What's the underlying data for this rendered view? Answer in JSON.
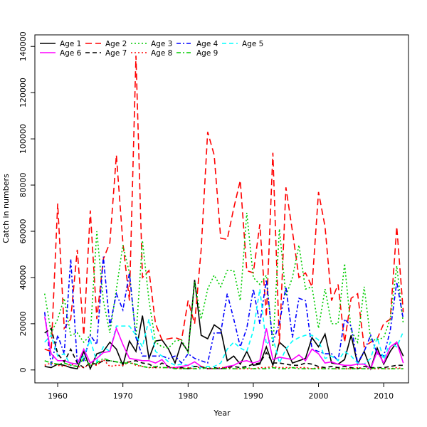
{
  "chart_data": {
    "type": "line",
    "title": "",
    "xlabel": "Year",
    "ylabel": "Catch in numbers",
    "xlim": [
      1956.5,
      2013.8
    ],
    "ylim": [
      -5600,
      145000
    ],
    "x_ticks": [
      1960,
      1970,
      1980,
      1990,
      2000,
      2010
    ],
    "y_ticks": [
      0,
      20000,
      40000,
      60000,
      80000,
      100000,
      120000,
      140000
    ],
    "grid": false,
    "legend_position": "top-left inside, 4 columns",
    "x": [
      1958,
      1959,
      1960,
      1961,
      1962,
      1963,
      1964,
      1965,
      1966,
      1967,
      1968,
      1969,
      1970,
      1971,
      1972,
      1973,
      1974,
      1975,
      1976,
      1977,
      1978,
      1979,
      1980,
      1981,
      1982,
      1983,
      1984,
      1985,
      1986,
      1987,
      1988,
      1989,
      1990,
      1991,
      1992,
      1993,
      1994,
      1995,
      1996,
      1997,
      1998,
      1999,
      2000,
      2001,
      2002,
      2003,
      2004,
      2005,
      2006,
      2007,
      2008,
      2009,
      2010,
      2011,
      2012,
      2013
    ],
    "series": [
      {
        "name": "Age 1",
        "color": "#000000",
        "dash": "solid",
        "values": [
          1500,
          1000,
          2500,
          2000,
          1000,
          500,
          8000,
          500,
          7000,
          8000,
          12000,
          9000,
          2000,
          12500,
          8000,
          23500,
          5000,
          12500,
          13000,
          9000,
          3000,
          12000,
          8000,
          39000,
          15000,
          13500,
          19500,
          17500,
          4000,
          6000,
          2500,
          8000,
          2000,
          2500,
          10000,
          2000,
          12000,
          9500,
          3000,
          4000,
          5000,
          14000,
          10000,
          15500,
          3000,
          2500,
          4500,
          15000,
          2500,
          8000,
          500,
          9500,
          2500,
          8000,
          12000,
          6000
        ]
      },
      {
        "name": "Age 2",
        "color": "#ff0000",
        "dash": "longdash",
        "values": [
          9000,
          8000,
          72000,
          18000,
          22000,
          52000,
          15000,
          69000,
          22000,
          48000,
          55000,
          93000,
          55000,
          30000,
          136000,
          40000,
          43000,
          20000,
          13000,
          13500,
          14000,
          13000,
          30000,
          20000,
          52000,
          103000,
          93000,
          57000,
          56500,
          70000,
          82000,
          43000,
          42000,
          63000,
          23000,
          94000,
          11000,
          79000,
          60000,
          40000,
          42000,
          36000,
          77000,
          62000,
          30000,
          37000,
          12000,
          31000,
          33000,
          10000,
          12000,
          13500,
          20000,
          22000,
          62000,
          25000
        ]
      },
      {
        "name": "Age 3",
        "color": "#00cc00",
        "dash": "dotted",
        "values": [
          33000,
          16000,
          22000,
          31000,
          15000,
          16000,
          12000,
          15000,
          60000,
          30000,
          16000,
          35000,
          54000,
          42000,
          14000,
          56000,
          30000,
          12000,
          10000,
          9500,
          12500,
          13000,
          7500,
          38000,
          22000,
          35000,
          41000,
          36000,
          43000,
          43000,
          30000,
          68000,
          40000,
          37000,
          41000,
          10000,
          61000,
          32000,
          40000,
          54000,
          35000,
          36000,
          18000,
          35000,
          20000,
          20000,
          46000,
          17000,
          12000,
          36000,
          13000,
          13000,
          14000,
          22000,
          45000,
          20000
        ]
      },
      {
        "name": "Age 4",
        "color": "#0000ff",
        "dash": "dashdot",
        "values": [
          25000,
          2000,
          15000,
          7000,
          48000,
          3000,
          4000,
          15000,
          11000,
          49000,
          19000,
          33000,
          26000,
          42000,
          14000,
          6000,
          6000,
          6000,
          6000,
          5000,
          6000,
          3000,
          7000,
          5000,
          4000,
          3000,
          16000,
          16000,
          33000,
          22000,
          10000,
          18000,
          35000,
          20000,
          39000,
          12000,
          20000,
          36000,
          14000,
          31000,
          30000,
          9000,
          8000,
          7000,
          7000,
          4000,
          22000,
          19000,
          3000,
          8000,
          15000,
          7000,
          6000,
          17000,
          38000,
          22000
        ]
      },
      {
        "name": "Age 5",
        "color": "#00ffff",
        "dash": "dashed",
        "values": [
          12000,
          15000,
          6000,
          7000,
          2000,
          3000,
          6000,
          13000,
          3500,
          10000,
          8000,
          19000,
          19000,
          19000,
          15000,
          10000,
          22000,
          8000,
          6000,
          3500,
          2000,
          2500,
          2000,
          1500,
          1000,
          1500,
          1500,
          3000,
          9000,
          12000,
          9500,
          8000,
          17000,
          35000,
          11000,
          14000,
          3000,
          9000,
          12500,
          14000,
          15000,
          15000,
          13000,
          5000,
          6000,
          4000,
          8000,
          6000,
          3000,
          2500,
          5000,
          14000,
          4500,
          12000,
          10000,
          16500
        ]
      },
      {
        "name": "Age 6",
        "color": "#ff00ff",
        "dash": "solid",
        "values": [
          23000,
          7000,
          4000,
          4000,
          3000,
          2500,
          9000,
          3000,
          5000,
          7500,
          8000,
          18000,
          11000,
          5000,
          4500,
          4000,
          4000,
          3000,
          4500,
          1000,
          1000,
          1500,
          2000,
          3500,
          1500,
          500,
          500,
          500,
          1500,
          2000,
          3500,
          4000,
          3000,
          4000,
          18000,
          4500,
          5500,
          5000,
          4500,
          6500,
          4000,
          9000,
          7000,
          3000,
          3500,
          2500,
          2000,
          2000,
          2500,
          2500,
          500,
          8000,
          3000,
          10000,
          12000,
          3000
        ]
      },
      {
        "name": "Age 7",
        "color": "#000000",
        "dash": "dashed",
        "values": [
          16000,
          18000,
          7000,
          3500,
          9000,
          3000,
          1000,
          3000,
          2500,
          4000,
          4000,
          3500,
          3000,
          3500,
          4000,
          3000,
          2500,
          1000,
          3000,
          1500,
          500,
          1000,
          500,
          1500,
          1500,
          500,
          1000,
          500,
          1000,
          1500,
          1000,
          1500,
          2500,
          3000,
          7500,
          3000,
          3000,
          2500,
          2000,
          2000,
          3000,
          2500,
          1500,
          1000,
          1500,
          1000,
          1500,
          1000,
          500,
          1500,
          1000,
          1000,
          1000,
          1500,
          2000,
          2000
        ]
      },
      {
        "name": "Age 8",
        "color": "#ff0000",
        "dash": "dotted",
        "values": [
          2000,
          3000,
          2000,
          1500,
          2500,
          1500,
          1000,
          2500,
          2000,
          4500,
          1500,
          2000,
          2000,
          3500,
          2000,
          1500,
          1000,
          1000,
          1000,
          1000,
          1000,
          500,
          1000,
          500,
          1500,
          500,
          500,
          1000,
          1000,
          500,
          500,
          500,
          500,
          1000,
          1000,
          1500,
          1000,
          1000,
          1000,
          1000,
          1000,
          500,
          1000,
          500,
          500,
          500,
          500,
          500,
          1000,
          500,
          500,
          500,
          500,
          500,
          1000,
          500
        ]
      },
      {
        "name": "Age 9",
        "color": "#00cc00",
        "dash": "dashdot",
        "values": [
          4000,
          3000,
          2500,
          3000,
          2000,
          1500,
          5000,
          2000,
          3000,
          5000,
          4000,
          3500,
          3000,
          3000,
          2500,
          1500,
          1000,
          1500,
          1000,
          1000,
          500,
          500,
          500,
          500,
          500,
          1000,
          500,
          500,
          500,
          500,
          500,
          1000,
          500,
          500,
          500,
          1000,
          500,
          500,
          1000,
          500,
          500,
          500,
          500,
          500,
          500,
          500,
          500,
          500,
          500,
          500,
          500,
          1000,
          500,
          500,
          500,
          500
        ]
      }
    ]
  }
}
